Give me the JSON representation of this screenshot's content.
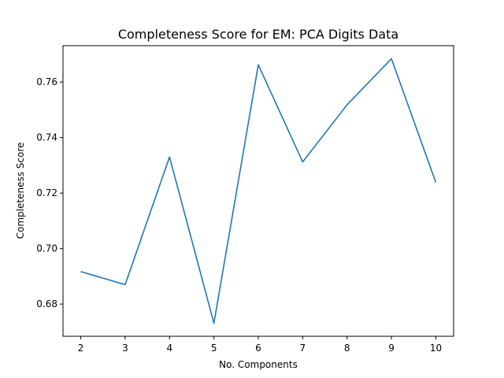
{
  "chart_data": {
    "type": "line",
    "title": "Completeness Score for EM: PCA Digits Data",
    "xlabel": "No. Components",
    "ylabel": "Completeness Score",
    "x": [
      2,
      3,
      4,
      5,
      6,
      7,
      8,
      9,
      10
    ],
    "series": [
      {
        "values": [
          0.6917,
          0.687,
          0.733,
          0.6731,
          0.7662,
          0.7312,
          0.7518,
          0.7684,
          0.7238
        ]
      }
    ],
    "xlim": [
      1.6,
      10.4
    ],
    "ylim": [
      0.6684,
      0.7731
    ],
    "x_ticks": [
      2,
      3,
      4,
      5,
      6,
      7,
      8,
      9,
      10
    ],
    "y_ticks": [
      0.68,
      0.7,
      0.72,
      0.74,
      0.76
    ],
    "y_tick_labels": [
      "0.68",
      "0.70",
      "0.72",
      "0.74",
      "0.76"
    ],
    "line_color": "#1f77b4",
    "grid": false,
    "legend": "none"
  }
}
